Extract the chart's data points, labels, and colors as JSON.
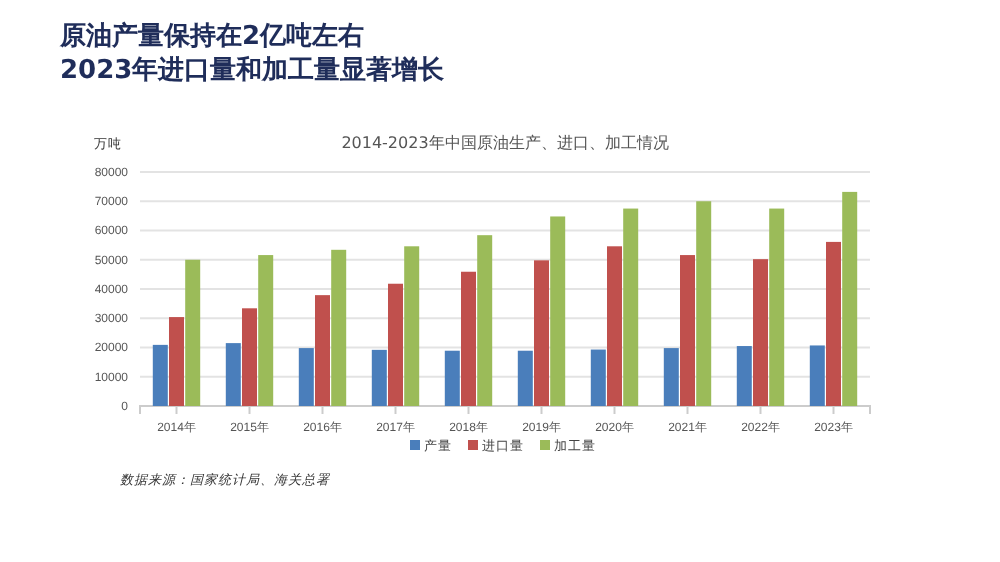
{
  "chart_data": {
    "type": "bar",
    "title": "原油产量保持在2亿吨左右\n2023年进口量和加工量显著增长",
    "subtitle": "2014-2023年中国原油生产、进口、加工情况",
    "ylabel": "万吨",
    "categories": [
      "2014年",
      "2015年",
      "2016年",
      "2017年",
      "2018年",
      "2019年",
      "2020年",
      "2021年",
      "2022年",
      "2023年"
    ],
    "series": [
      {
        "name": "产量",
        "color": "#4a7ebb",
        "values": [
          20900,
          21500,
          19800,
          19200,
          18900,
          18900,
          19300,
          19800,
          20500,
          20700
        ]
      },
      {
        "name": "进口量",
        "color": "#c0504d",
        "values": [
          30400,
          33400,
          37900,
          41800,
          45900,
          49800,
          54600,
          51600,
          50200,
          56100
        ]
      },
      {
        "name": "加工量",
        "color": "#9bbb59",
        "values": [
          50000,
          51600,
          53400,
          54600,
          58400,
          64800,
          67500,
          70000,
          67500,
          73200
        ]
      }
    ],
    "ylim": [
      0,
      80000
    ],
    "yticks": [
      0,
      10000,
      20000,
      30000,
      40000,
      50000,
      60000,
      70000,
      80000
    ],
    "grid": "y",
    "legend": "bottom",
    "annotations": [
      "数据来源：国家统计局、海关总署"
    ]
  }
}
